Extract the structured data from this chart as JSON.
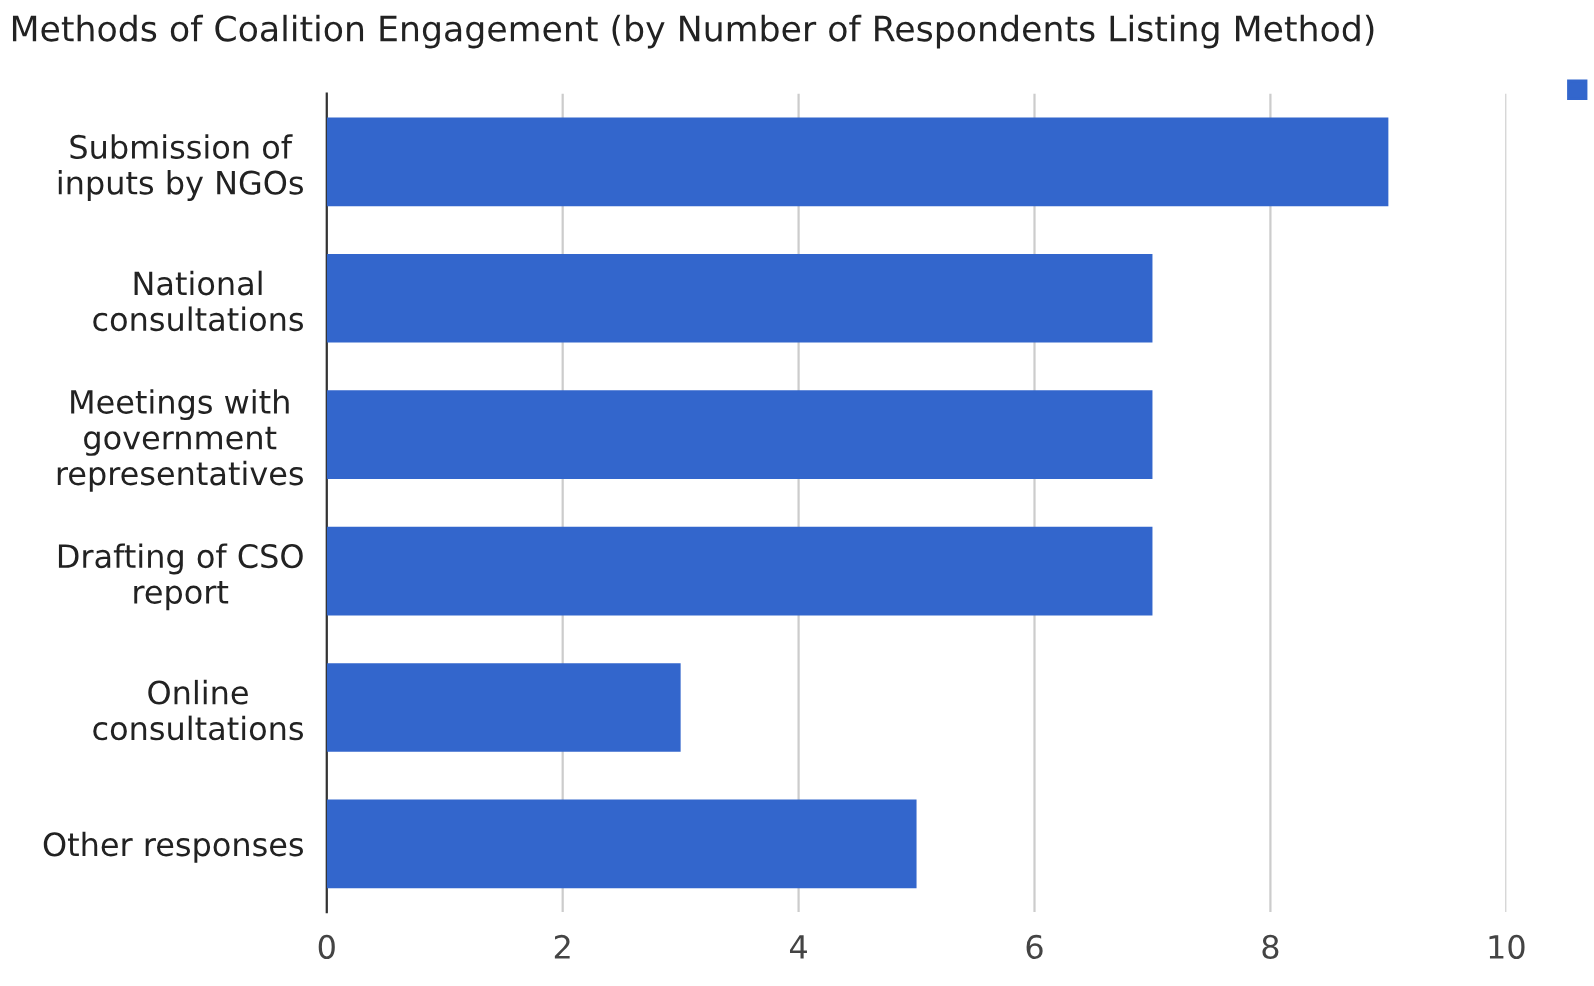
{
  "chart_data": {
    "type": "bar",
    "orientation": "horizontal",
    "title": "Methods of Coalition Engagement (by Number of Respondents Listing Method)",
    "categories": [
      "Submission of\ninputs by NGOs",
      "National\nconsultations",
      "Meetings with\ngovernment\nrepresentatives",
      "Drafting of CSO\nreport",
      "Online\nconsultations",
      "Other responses"
    ],
    "series": [
      {
        "color": "#3366cc",
        "values": [
          9,
          7,
          7,
          7,
          3,
          5
        ]
      }
    ],
    "xlim": [
      0,
      10
    ],
    "xticks": [
      0,
      2,
      4,
      6,
      8,
      10
    ],
    "grid": "x"
  }
}
